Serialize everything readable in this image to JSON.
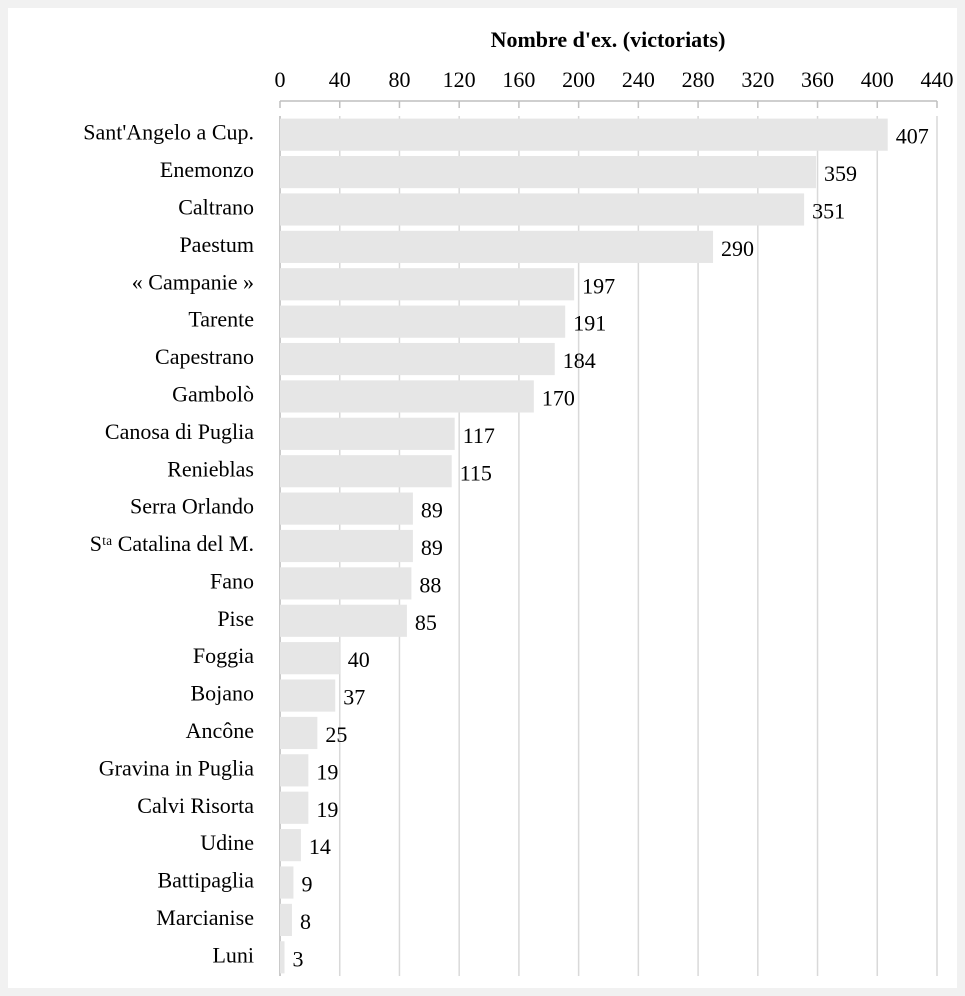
{
  "chart_data": {
    "type": "barh",
    "xlabel": "Nombre d'ex. (victoriats)",
    "categories": [
      "Sant'Angelo a Cup.",
      "Enemonzo",
      "Caltrano",
      "Paestum",
      "« Campanie »",
      "Tarente",
      "Capestrano",
      "Gambolò",
      "Canosa di Puglia",
      "Renieblas",
      "Serra Orlando",
      "Sᵗᵃ Catalina del M.",
      "Fano",
      "Pise",
      "Foggia",
      "Bojano",
      "Ancône",
      "Gravina in Puglia",
      "Calvi Risorta",
      "Udine",
      "Battipaglia",
      "Marcianise",
      "Luni"
    ],
    "values": [
      407,
      359,
      351,
      290,
      197,
      191,
      184,
      170,
      117,
      115,
      89,
      89,
      88,
      85,
      40,
      37,
      25,
      19,
      19,
      14,
      9,
      8,
      3
    ],
    "color": "#e6e6e6",
    "xlim": [
      0,
      440
    ],
    "xticks": [
      0,
      40,
      80,
      120,
      160,
      200,
      240,
      280,
      320,
      360,
      400,
      440
    ],
    "grid": true
  }
}
